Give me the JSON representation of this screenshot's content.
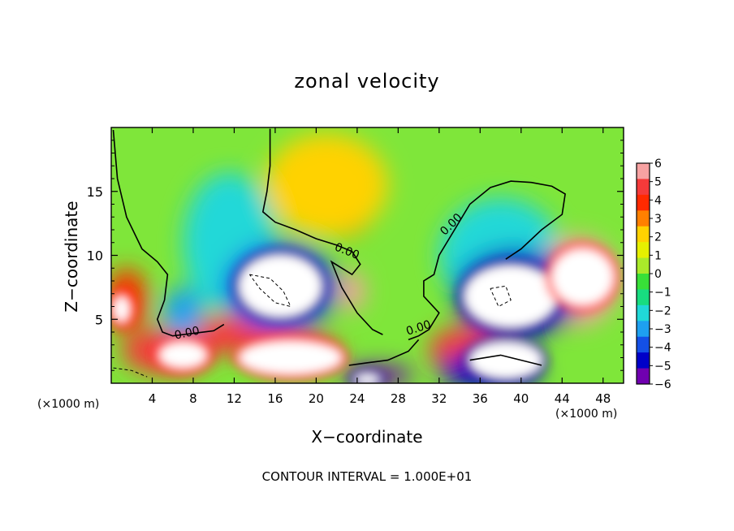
{
  "chart_data": {
    "type": "heatmap",
    "title": "zonal velocity",
    "xlabel": "X−coordinate",
    "ylabel": "Z−coordinate",
    "x_scale_note": "(×1000 m)",
    "x_scale_note_right": "(×1000 m)",
    "footer": "CONTOUR INTERVAL = 1.000E+01",
    "x_range": [
      0,
      50
    ],
    "y_range": [
      0,
      20
    ],
    "x_ticks": [
      "4",
      "8",
      "12",
      "16",
      "20",
      "24",
      "28",
      "32",
      "36",
      "40",
      "44",
      "48"
    ],
    "y_ticks": [
      "5",
      "10",
      "15"
    ],
    "colorbar": {
      "range": [
        -6,
        6
      ],
      "tick_labels": [
        "6",
        "5",
        "4",
        "3",
        "2",
        "1",
        "0",
        "−1",
        "−2",
        "−3",
        "−4",
        "−5",
        "−6"
      ],
      "colors": [
        "#f7a2a2",
        "#f43a3a",
        "#ff2a00",
        "#ff8000",
        "#ffd200",
        "#e6f000",
        "#aaea2a",
        "#38e038",
        "#18dc80",
        "#20d8d8",
        "#1ea0f0",
        "#1450e6",
        "#0000c8",
        "#7000b0"
      ]
    },
    "zero_contour_labels": [
      "0.00",
      "0.00",
      "0.00",
      "0.00"
    ],
    "features": [
      {
        "x": 22.5,
        "z": 13.5,
        "value": 4,
        "r": [
          3.0,
          2.0
        ]
      },
      {
        "x": 21.0,
        "z": 15.5,
        "value": 2.5,
        "r": [
          6.0,
          4.0
        ]
      },
      {
        "x": 10.5,
        "z": 11.5,
        "value": -3,
        "r": [
          2.0,
          3.5
        ]
      },
      {
        "x": 11.5,
        "z": 11.0,
        "value": -2,
        "r": [
          4.5,
          5.5
        ]
      },
      {
        "x": 38.0,
        "z": 11.0,
        "value": -3,
        "r": [
          2.5,
          3.0
        ]
      },
      {
        "x": 38.0,
        "z": 10.0,
        "value": -2,
        "r": [
          6.0,
          4.5
        ]
      },
      {
        "x": 23.5,
        "z": 7.2,
        "value": 6,
        "r": [
          1.2,
          1.6
        ]
      },
      {
        "x": 5.5,
        "z": 2.5,
        "value": 5,
        "r": [
          4.5,
          1.8
        ]
      },
      {
        "x": 12.0,
        "z": 3.8,
        "value": 4.5,
        "r": [
          5.0,
          1.5
        ]
      },
      {
        "x": 18.0,
        "z": 2.5,
        "value": 5,
        "r": [
          4.5,
          1.4
        ]
      },
      {
        "x": 34.5,
        "z": 2.6,
        "value": 4.5,
        "r": [
          3.5,
          1.8
        ]
      },
      {
        "x": 1.5,
        "z": 6.5,
        "value": 3.5,
        "r": [
          2.0,
          2.5
        ]
      },
      {
        "x": 45.5,
        "z": 8.0,
        "value": 5.5,
        "r": [
          4.0,
          3.5
        ]
      },
      {
        "x": 37.0,
        "z": 1.0,
        "value": -5,
        "r": [
          5.0,
          1.5
        ]
      },
      {
        "x": 26.0,
        "z": 0.6,
        "value": -5.5,
        "r": [
          3.5,
          0.8
        ]
      },
      {
        "x": 16.5,
        "z": 7.5,
        "value": -4,
        "r": [
          5.5,
          3.5
        ]
      },
      {
        "x": 39.5,
        "z": 7.0,
        "value": -4.5,
        "r": [
          6.0,
          3.5
        ]
      },
      {
        "x": 7.0,
        "z": 5.5,
        "value": -3,
        "r": [
          2.0,
          2.0
        ]
      }
    ],
    "saturated_regions": [
      {
        "x": 16.5,
        "z": 7.6,
        "r": [
          4.0,
          2.4
        ],
        "sign": "negative"
      },
      {
        "x": 39.0,
        "z": 6.8,
        "r": [
          4.5,
          2.4
        ],
        "sign": "negative"
      },
      {
        "x": 46.0,
        "z": 8.3,
        "r": [
          3.0,
          2.2
        ],
        "sign": "positive"
      },
      {
        "x": 1.0,
        "z": 5.8,
        "r": [
          0.8,
          1.0
        ],
        "sign": "positive"
      },
      {
        "x": 17.5,
        "z": 2.0,
        "r": [
          5.0,
          1.3
        ],
        "sign": "positive"
      },
      {
        "x": 7.0,
        "z": 2.2,
        "r": [
          2.3,
          1.0
        ],
        "sign": "positive"
      },
      {
        "x": 38.5,
        "z": 1.8,
        "r": [
          3.5,
          1.4
        ],
        "sign": "negative"
      },
      {
        "x": 25.0,
        "z": 0.3,
        "r": [
          1.2,
          0.4
        ],
        "sign": "negative"
      }
    ]
  }
}
